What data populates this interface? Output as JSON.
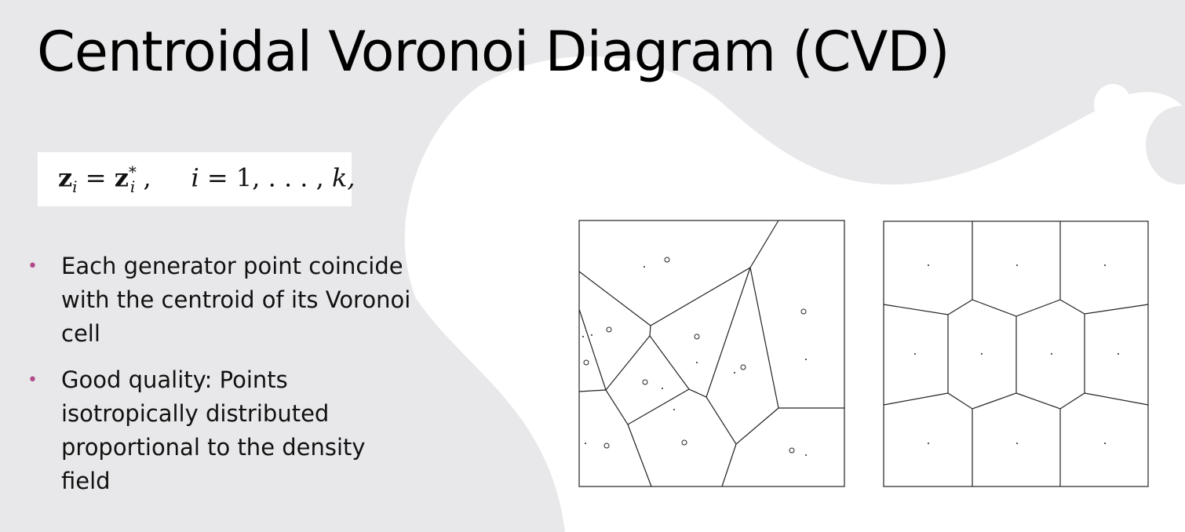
{
  "slide": {
    "title": "Centroidal Voronoi Diagram (CVD)",
    "formula": {
      "lhs": "z",
      "lhs_sub": "i",
      "rhs": "z",
      "rhs_sub": "i",
      "rhs_sup": "*",
      "index_var": "i",
      "range": "= 1, . . . , ",
      "k": "k,"
    },
    "bullets": [
      "Each generator point coincide with the centroid of its Voronoi cell",
      "Good quality: Points isotropically distributed proportional to the density field"
    ]
  },
  "colors": {
    "bullet": "#b04a8a",
    "background": "#e8e8ea",
    "blob": "#ffffff"
  }
}
